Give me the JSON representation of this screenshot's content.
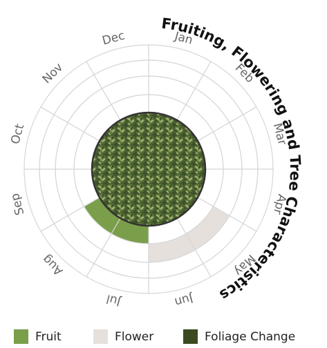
{
  "chart_data": {
    "type": "radial",
    "title": "Fruiting, Flowering and Tree Characteristics",
    "categories": [
      "Jan",
      "Feb",
      "Mar",
      "Apr",
      "May",
      "Jun",
      "Jul",
      "Aug",
      "Sep",
      "Oct",
      "Nov",
      "Dec"
    ],
    "series": [
      {
        "name": "Fruit",
        "color": "#7a9e4a",
        "values": [
          0,
          0,
          0,
          0,
          0,
          0,
          1,
          1,
          0,
          0,
          0,
          0
        ]
      },
      {
        "name": "Flower",
        "color": "#e6e0dc",
        "values": [
          0,
          0,
          0,
          0,
          1,
          1,
          0,
          0,
          0,
          0,
          0,
          0
        ]
      },
      {
        "name": "Foliage Change",
        "color": "#3b4a20",
        "values": [
          0,
          0,
          0,
          0,
          0,
          0,
          0,
          0,
          0,
          0,
          0,
          0
        ]
      }
    ]
  }
}
